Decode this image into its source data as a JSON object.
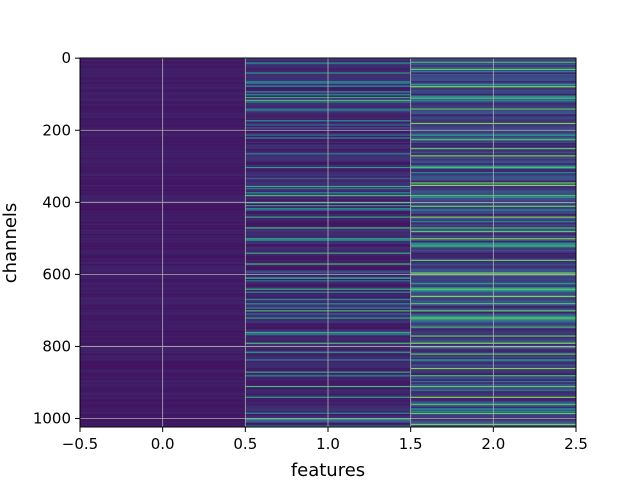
{
  "chart_data": {
    "type": "heatmap",
    "title": "",
    "xlabel": "features",
    "ylabel": "channels",
    "x_ticks": [
      -0.5,
      0.0,
      0.5,
      1.0,
      1.5,
      2.0,
      2.5
    ],
    "x_tick_labels": [
      "−0.5",
      "0.0",
      "0.5",
      "1.0",
      "1.5",
      "2.0",
      "2.5"
    ],
    "y_ticks": [
      0,
      200,
      400,
      600,
      800,
      1000
    ],
    "y_tick_labels": [
      "0",
      "200",
      "400",
      "600",
      "800",
      "1000"
    ],
    "xlim": [
      -0.5,
      2.5
    ],
    "ylim": [
      1023.5,
      -0.5
    ],
    "grid": true,
    "colormap": "viridis",
    "columns": [
      "0",
      "1",
      "2"
    ],
    "rows": 1024,
    "column_base_level": [
      0.08,
      0.12,
      0.2
    ],
    "bright_rows": [
      {
        "column": 1,
        "channels": [
          40,
          108,
          116,
          302,
          355,
          380,
          408,
          440,
          470,
          500,
          540,
          570,
          610,
          640,
          700,
          720,
          760,
          790,
          815,
          870,
          910,
          940,
          1000
        ],
        "level": 0.6
      },
      {
        "column": 2,
        "channels": [
          10,
          30,
          78,
          110,
          140,
          180,
          225,
          250,
          270,
          302,
          345,
          352,
          380,
          410,
          440,
          470,
          480,
          500,
          520,
          560,
          595,
          600,
          640,
          660,
          680,
          700,
          720,
          745,
          770,
          790,
          800,
          820,
          860,
          880,
          910,
          940,
          960,
          985,
          1015
        ],
        "level": 0.75
      }
    ]
  }
}
